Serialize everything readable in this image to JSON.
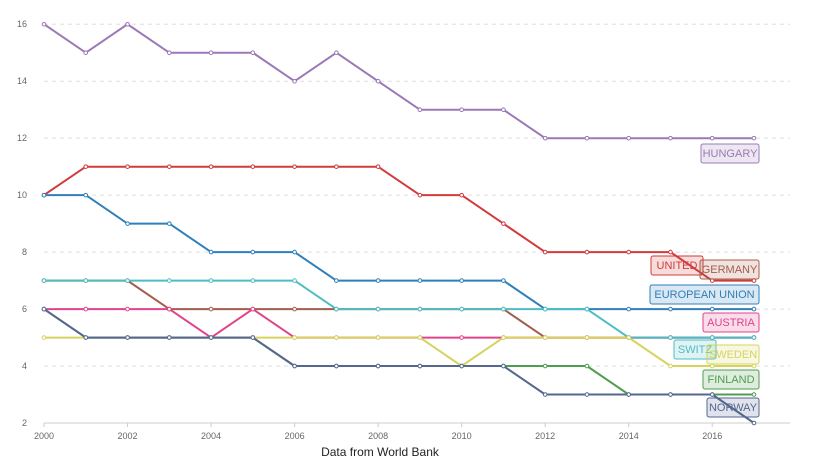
{
  "chart_data": {
    "type": "line",
    "caption": "Data from World Bank",
    "xlim": [
      2000,
      2017
    ],
    "ylim": [
      2,
      16.5
    ],
    "x_ticks": [
      2000,
      2002,
      2004,
      2006,
      2008,
      2010,
      2012,
      2014,
      2016
    ],
    "y_ticks": [
      2,
      4,
      6,
      8,
      10,
      12,
      14,
      16
    ],
    "grid": "horizontal dashed",
    "x": [
      2000,
      2001,
      2002,
      2003,
      2004,
      2005,
      2006,
      2007,
      2008,
      2009,
      2010,
      2011,
      2012,
      2013,
      2014,
      2015,
      2016,
      2017
    ],
    "series": [
      {
        "name": "HUNGARY",
        "color": "#9b78b7",
        "values": [
          16,
          15,
          16,
          15,
          15,
          15,
          14,
          15,
          14,
          13,
          13,
          13,
          12,
          12,
          12,
          12,
          12,
          12
        ]
      },
      {
        "name": "UNITED KINGDOM",
        "color": "#d13b3b",
        "values": [
          10,
          11,
          11,
          11,
          11,
          11,
          11,
          11,
          11,
          10,
          10,
          9,
          8,
          8,
          8,
          8,
          7,
          7
        ]
      },
      {
        "name": "GERMANY",
        "color": "#a45d4b",
        "values": [
          7,
          7,
          7,
          6,
          6,
          6,
          6,
          6,
          6,
          6,
          6,
          6,
          5,
          5,
          5,
          5,
          5,
          5
        ]
      },
      {
        "name": "EUROPEAN UNION",
        "color": "#2f7fba",
        "values": [
          10,
          10,
          9,
          9,
          8,
          8,
          8,
          7,
          7,
          7,
          7,
          7,
          6,
          6,
          6,
          6,
          6,
          6
        ]
      },
      {
        "name": "AUSTRIA",
        "color": "#e0438c",
        "values": [
          6,
          6,
          6,
          6,
          5,
          6,
          5,
          5,
          5,
          5,
          5,
          5,
          5,
          5,
          5,
          5,
          5,
          5
        ]
      },
      {
        "name": "SWITZERLAND",
        "color": "#4dbdc4",
        "values": [
          7,
          7,
          7,
          7,
          7,
          7,
          7,
          6,
          6,
          6,
          6,
          6,
          6,
          6,
          5,
          5,
          5,
          5
        ]
      },
      {
        "name": "SWEDEN",
        "color": "#d6d45e",
        "values": [
          5,
          5,
          5,
          5,
          5,
          5,
          5,
          5,
          5,
          5,
          4,
          5,
          5,
          5,
          5,
          4,
          4,
          4
        ]
      },
      {
        "name": "FINLAND",
        "color": "#4f9d4f",
        "values": [
          6,
          5,
          5,
          5,
          5,
          5,
          4,
          4,
          4,
          4,
          4,
          4,
          4,
          4,
          3,
          3,
          3,
          3
        ]
      },
      {
        "name": "NORWAY",
        "color": "#55668f",
        "values": [
          6,
          5,
          5,
          5,
          5,
          5,
          4,
          4,
          4,
          4,
          4,
          4,
          3,
          3,
          3,
          3,
          3,
          2
        ]
      }
    ],
    "end_labels": [
      {
        "text": "HUNGARY",
        "series": "HUNGARY"
      },
      {
        "text": "UNITED",
        "series": "UNITED KINGDOM"
      },
      {
        "text": "GERMANY",
        "series": "GERMANY"
      },
      {
        "text": "EUROPEAN UNION",
        "series": "EUROPEAN UNION"
      },
      {
        "text": "AUSTRIA",
        "series": "AUSTRIA"
      },
      {
        "text": "SWITZ",
        "series": "SWITZERLAND"
      },
      {
        "text": "SWEDEN",
        "series": "SWEDEN"
      },
      {
        "text": "FINLAND",
        "series": "FINLAND"
      },
      {
        "text": "NORWAY",
        "series": "NORWAY"
      }
    ]
  }
}
